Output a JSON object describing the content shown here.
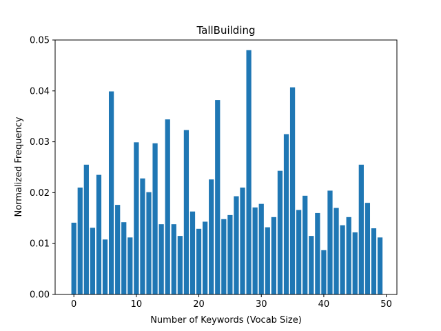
{
  "chart_data": {
    "type": "bar",
    "title": "TallBuilding",
    "xlabel": "Number of Keywords (Vocab Size)",
    "ylabel": "Normalized Frequency",
    "xlim": [
      -3.0,
      51.7
    ],
    "ylim": [
      0,
      0.05
    ],
    "xticks": [
      0,
      10,
      20,
      30,
      40,
      50
    ],
    "yticks": [
      0.0,
      0.01,
      0.02,
      0.03,
      0.04,
      0.05
    ],
    "ytick_labels": [
      "0.00",
      "0.01",
      "0.02",
      "0.03",
      "0.04",
      "0.05"
    ],
    "bar_color": "#1f77b4",
    "grid": false,
    "x": [
      0,
      1,
      2,
      3,
      4,
      5,
      6,
      7,
      8,
      9,
      10,
      11,
      12,
      13,
      14,
      15,
      16,
      17,
      18,
      19,
      20,
      21,
      22,
      23,
      24,
      25,
      26,
      27,
      28,
      29,
      30,
      31,
      32,
      33,
      34,
      35,
      36,
      37,
      38,
      39,
      40,
      41,
      42,
      43,
      44,
      45,
      46,
      47,
      48,
      49
    ],
    "values": [
      0.0141,
      0.021,
      0.0255,
      0.0131,
      0.0235,
      0.0108,
      0.0399,
      0.0176,
      0.0142,
      0.0112,
      0.0299,
      0.0228,
      0.0201,
      0.0297,
      0.0138,
      0.0344,
      0.0138,
      0.0115,
      0.0323,
      0.0163,
      0.0129,
      0.0143,
      0.0226,
      0.0382,
      0.0148,
      0.0156,
      0.0193,
      0.021,
      0.048,
      0.0171,
      0.0178,
      0.0132,
      0.0152,
      0.0243,
      0.0315,
      0.0407,
      0.0166,
      0.0194,
      0.0115,
      0.016,
      0.0087,
      0.0204,
      0.017,
      0.0136,
      0.0152,
      0.0122,
      0.0255,
      0.018,
      0.013,
      0.0112
    ]
  }
}
